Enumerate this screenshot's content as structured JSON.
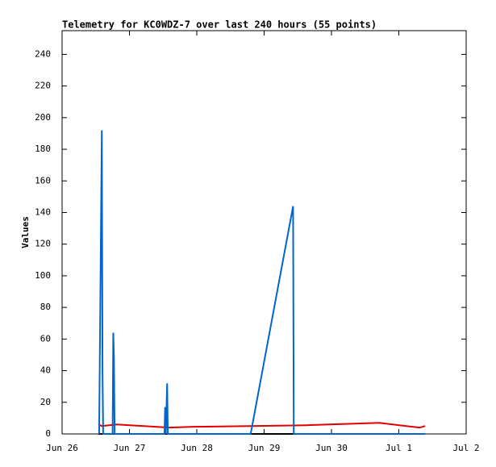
{
  "chart_data": {
    "type": "line",
    "title": "Telemetry for KC0WDZ-7 over last 240 hours (55 points)",
    "y_label": "Values",
    "xlim": [
      0,
      6
    ],
    "xticks": [
      {
        "value": 0,
        "label": "Jun 26"
      },
      {
        "value": 1,
        "label": "Jun 27"
      },
      {
        "value": 2,
        "label": "Jun 28"
      },
      {
        "value": 3,
        "label": "Jun 29"
      },
      {
        "value": 4,
        "label": "Jun 30"
      },
      {
        "value": 5,
        "label": "Jul 1"
      },
      {
        "value": 6,
        "label": "Jul 2"
      }
    ],
    "ylim": [
      0,
      255
    ],
    "yticks": [
      0,
      20,
      40,
      60,
      80,
      100,
      120,
      140,
      160,
      180,
      200,
      220,
      240
    ],
    "series": [
      {
        "color": "#000000",
        "x": [
          0.54,
          5.39
        ],
        "values": [
          0,
          0
        ]
      },
      {
        "color": "#e00000",
        "x": [
          0.54,
          0.59,
          0.81,
          1.59,
          1.95,
          2.79,
          3.63,
          4.71,
          5.31,
          5.39
        ],
        "values": [
          6,
          5,
          6,
          4,
          4.5,
          5,
          5.5,
          7,
          4,
          5
        ]
      },
      {
        "color": "#0066cc",
        "x": [
          0.55,
          0.57,
          0.59,
          0.6,
          0.61,
          0.75,
          0.76,
          0.77,
          0.78,
          1.52,
          1.53,
          1.54,
          1.56,
          1.57,
          2.8,
          3.43,
          3.44,
          5.39
        ],
        "values": [
          0,
          96,
          192,
          40,
          0,
          0,
          64,
          48,
          0,
          0,
          17,
          0,
          32,
          0,
          0,
          144,
          0,
          0
        ]
      }
    ]
  }
}
